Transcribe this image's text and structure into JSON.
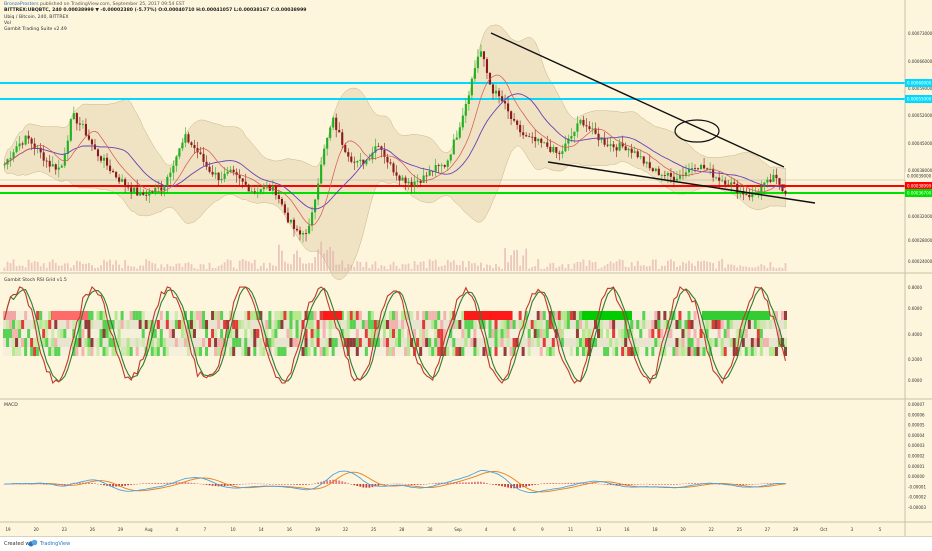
{
  "header": {
    "line1_user": "BronzeProsters",
    "line1_rest": "published on TradingView.com, September 25, 2017 09:54 EST",
    "line2": "BITTREX:UBQBTC, 240  0.00038999 ▼ -0.00002380 (-5.77%)  O:0.00040710  H:0.00041057  L:0.00038167  C:0.00038999",
    "line3": "Ubiq / Bitcoin, 240, BITTREX",
    "line4": "Vol",
    "line5": "Gambit Trading Suite v2.49"
  },
  "pane2_title": "Gambit Stoch RSI Grid v1.5",
  "pane3_title": "MACD",
  "footer": {
    "created": "Created with",
    "brand": "TradingView"
  },
  "colors": {
    "bg": "#fdf5dc",
    "cyan": "#00d9ff",
    "red": "#ff0000",
    "green": "#00e000",
    "bull": "#22b022",
    "bear": "#8b1a1a",
    "k": "#c0392b",
    "d": "#2e7d32",
    "macd": "#4aa3df",
    "signal": "#e67e22"
  },
  "chart_data": [
    {
      "type": "line",
      "title": "Ubiq / Bitcoin, 240, BITTREX",
      "y_axis_labels": [
        "0.00073000",
        "0.00066000",
        "0.00059000",
        "0.00052000",
        "0.00045000",
        "0.00038000",
        "0.00032000",
        "0.00028000",
        "0.00024000"
      ],
      "x_ticks": [
        "19",
        "20",
        "23",
        "26",
        "29",
        "Aug",
        "4",
        "7",
        "10",
        "14",
        "16",
        "19",
        "22",
        "25",
        "28",
        "30",
        "Sep",
        "4",
        "6",
        "9",
        "11",
        "13",
        "16",
        "18",
        "20",
        "22",
        "25",
        "27",
        "29",
        "Oct",
        "3",
        "5"
      ],
      "price_tags": [
        {
          "value": "0.00060000",
          "color": "#00d9ff"
        },
        {
          "value": "0.00055000",
          "color": "#00d9ff"
        },
        {
          "value": "0.00039000",
          "color": "#fdf5dc"
        },
        {
          "value": "0.00038999",
          "color": "#ff0000"
        },
        {
          "value": "0.00036700",
          "color": "#00e000"
        }
      ],
      "close": [
        0.00046,
        0.0005,
        0.00052,
        0.00049,
        0.00046,
        0.00045,
        0.00057,
        0.00054,
        0.00049,
        0.00046,
        0.00043,
        0.00041,
        0.00039,
        0.0004,
        0.00041,
        0.00047,
        0.00052,
        0.00049,
        0.00045,
        0.00043,
        0.00044,
        0.00042,
        0.0004,
        0.00041,
        0.0004,
        0.00034,
        0.0003,
        0.00032,
        0.00047,
        0.00056,
        0.0005,
        0.00046,
        0.00047,
        0.00051,
        0.00046,
        0.00043,
        0.00042,
        0.00043,
        0.00045,
        0.00046,
        0.00053,
        0.00062,
        0.00072,
        0.00063,
        0.0006,
        0.00055,
        0.00052,
        0.00051,
        0.0005,
        0.00048,
        0.00052,
        0.00056,
        0.00053,
        0.00051,
        0.0005,
        0.0005,
        0.00048,
        0.00045,
        0.00044,
        0.00043,
        0.00044,
        0.00046,
        0.00045,
        0.00043,
        0.00042,
        0.0004,
        0.00039,
        0.00041,
        0.00043,
        0.0004
      ]
    },
    {
      "type": "line",
      "title": "Gambit Stoch RSI Grid v1.5",
      "y_axis_labels": [
        "0.8000",
        "0.6000",
        "0.4000",
        "0.2000",
        "0.0000"
      ],
      "series": [
        {
          "name": "K"
        },
        {
          "name": "D"
        }
      ]
    },
    {
      "type": "bar",
      "title": "MACD",
      "y_axis_labels": [
        "0.00007",
        "0.00006",
        "0.00005",
        "0.00004",
        "0.00003",
        "0.00002",
        "0.00001",
        "0.00000",
        "-0.00001",
        "-0.00002",
        "-0.00003"
      ]
    }
  ]
}
